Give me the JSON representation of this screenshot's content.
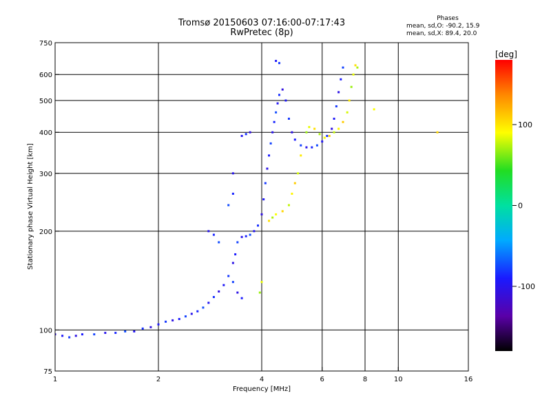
{
  "header": {
    "title": "Tromsø 20150603 07:16:00-07:17:43",
    "subtitle": "RwPretec (8p)"
  },
  "stats": {
    "heading": "Phases",
    "line_o": "mean, sd,O:  -90.2, 15.9",
    "line_x": "mean, sd,X:  89.4, 20.0"
  },
  "colorbar": {
    "label": "[deg]",
    "ticks": [
      {
        "label": "100",
        "value": 100
      },
      {
        "label": "0",
        "value": 0
      },
      {
        "label": "-100",
        "value": -100
      }
    ],
    "range": [
      -180,
      180
    ]
  },
  "chart_data": {
    "type": "scatter",
    "title": "Tromsø 20150603 07:16:00-07:17:43",
    "subtitle": "RwPretec (8p)",
    "xlabel": "Frequency [MHz]",
    "ylabel": "Stationary phase Virtual Height [km]",
    "xscale": "log",
    "yscale": "log",
    "xlim": [
      1,
      16
    ],
    "ylim": [
      75,
      750
    ],
    "x_ticks": [
      {
        "label": "1",
        "value": 1
      },
      {
        "label": "2",
        "value": 2
      },
      {
        "label": "4",
        "value": 4
      },
      {
        "label": "6",
        "value": 6
      },
      {
        "label": "8",
        "value": 8
      },
      {
        "label": "10",
        "value": 10
      },
      {
        "label": "16",
        "value": 16
      }
    ],
    "y_ticks": [
      {
        "label": "75",
        "value": 75
      },
      {
        "label": "100",
        "value": 100
      },
      {
        "label": "200",
        "value": 200
      },
      {
        "label": "300",
        "value": 300
      },
      {
        "label": "400",
        "value": 400
      },
      {
        "label": "500",
        "value": 500
      },
      {
        "label": "600",
        "value": 600
      },
      {
        "label": "750",
        "value": 750
      }
    ],
    "grid_x": [
      2,
      4,
      6,
      8,
      10
    ],
    "grid_y": [
      100,
      200,
      300,
      400,
      500,
      600
    ],
    "color_by": "phase_deg",
    "series": [
      {
        "name": "O-mode",
        "mean_phase": -90.2,
        "sd_phase": 15.9,
        "points": [
          [
            1.0,
            97
          ],
          [
            1.05,
            96
          ],
          [
            1.1,
            95
          ],
          [
            1.15,
            96
          ],
          [
            1.2,
            97
          ],
          [
            1.3,
            97
          ],
          [
            1.4,
            98
          ],
          [
            1.5,
            98
          ],
          [
            1.6,
            99
          ],
          [
            1.7,
            99
          ],
          [
            1.8,
            101
          ],
          [
            1.9,
            102
          ],
          [
            2.0,
            104
          ],
          [
            2.1,
            106
          ],
          [
            2.2,
            107
          ],
          [
            2.3,
            108
          ],
          [
            2.4,
            110
          ],
          [
            2.5,
            112
          ],
          [
            2.6,
            114
          ],
          [
            2.7,
            117
          ],
          [
            2.8,
            121
          ],
          [
            2.9,
            126
          ],
          [
            3.0,
            131
          ],
          [
            3.1,
            137
          ],
          [
            3.2,
            146
          ],
          [
            3.3,
            160
          ],
          [
            3.35,
            170
          ],
          [
            3.4,
            185
          ],
          [
            3.5,
            192
          ],
          [
            3.6,
            193
          ],
          [
            3.7,
            195
          ],
          [
            3.8,
            200
          ],
          [
            3.9,
            208
          ],
          [
            4.0,
            225
          ],
          [
            4.05,
            250
          ],
          [
            4.1,
            280
          ],
          [
            4.15,
            310
          ],
          [
            4.2,
            340
          ],
          [
            4.25,
            370
          ],
          [
            4.3,
            400
          ],
          [
            4.35,
            430
          ],
          [
            4.4,
            460
          ],
          [
            4.45,
            490
          ],
          [
            4.5,
            520
          ],
          [
            4.6,
            540
          ],
          [
            4.7,
            500
          ],
          [
            4.8,
            440
          ],
          [
            4.9,
            400
          ],
          [
            5.0,
            380
          ],
          [
            5.2,
            365
          ],
          [
            5.4,
            360
          ],
          [
            5.6,
            360
          ],
          [
            5.8,
            365
          ],
          [
            6.0,
            375
          ],
          [
            6.2,
            390
          ],
          [
            6.4,
            410
          ],
          [
            6.5,
            440
          ],
          [
            6.6,
            480
          ],
          [
            6.7,
            530
          ],
          [
            6.8,
            580
          ],
          [
            6.9,
            630
          ],
          [
            3.3,
            300
          ],
          [
            3.3,
            260
          ],
          [
            3.2,
            240
          ],
          [
            3.5,
            390
          ],
          [
            3.6,
            395
          ],
          [
            3.7,
            400
          ],
          [
            4.4,
            660
          ],
          [
            4.5,
            650
          ],
          [
            3.4,
            130
          ],
          [
            3.5,
            125
          ],
          [
            3.3,
            140
          ],
          [
            2.8,
            200
          ],
          [
            2.9,
            195
          ],
          [
            3.0,
            185
          ]
        ]
      },
      {
        "name": "X-mode",
        "mean_phase": 89.4,
        "sd_phase": 20.0,
        "points": [
          [
            3.95,
            130
          ],
          [
            4.0,
            140
          ],
          [
            4.2,
            215
          ],
          [
            4.3,
            220
          ],
          [
            4.4,
            225
          ],
          [
            4.6,
            230
          ],
          [
            4.8,
            240
          ],
          [
            4.9,
            260
          ],
          [
            5.0,
            280
          ],
          [
            5.1,
            300
          ],
          [
            5.2,
            340
          ],
          [
            5.4,
            400
          ],
          [
            5.5,
            415
          ],
          [
            5.7,
            410
          ],
          [
            5.9,
            395
          ],
          [
            6.1,
            385
          ],
          [
            6.3,
            390
          ],
          [
            6.5,
            400
          ],
          [
            6.7,
            410
          ],
          [
            6.9,
            430
          ],
          [
            7.1,
            460
          ],
          [
            7.2,
            500
          ],
          [
            7.3,
            550
          ],
          [
            7.4,
            600
          ],
          [
            7.5,
            640
          ],
          [
            7.6,
            630
          ],
          [
            8.5,
            470
          ],
          [
            13.0,
            400
          ]
        ]
      }
    ]
  }
}
